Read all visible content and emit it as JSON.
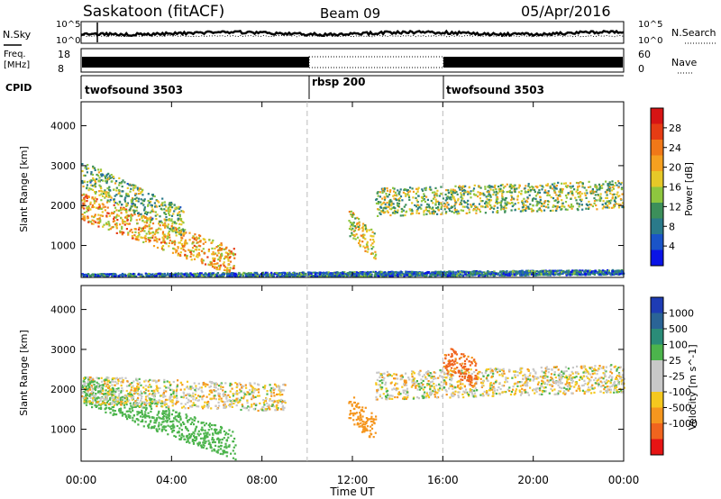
{
  "header": {
    "station": "Saskatoon (fitACF)",
    "beam": "Beam 09",
    "date": "05/Apr/2016"
  },
  "strips": {
    "noise": {
      "left_label": "N.Sky",
      "right_label": "N.Search",
      "left_ticks": [
        "10^5",
        "10^0"
      ],
      "right_ticks": [
        "10^5",
        "10^0"
      ]
    },
    "freq": {
      "left_label_1": "Freq.",
      "left_label_2": "[MHz]",
      "right_label": "Nave",
      "left_ticks": [
        "18",
        "8"
      ],
      "right_ticks": [
        "60",
        "0"
      ]
    },
    "cpid": {
      "label": "CPID",
      "segments": [
        {
          "name": "twofsound 3503",
          "start_hour": 0,
          "end_hour": 10
        },
        {
          "name": "rbsp 200",
          "start_hour": 10,
          "end_hour": 16
        },
        {
          "name": "twofsound 3503",
          "start_hour": 16,
          "end_hour": 24
        }
      ]
    }
  },
  "chart_data": [
    {
      "type": "heatmap",
      "quantity": "Power",
      "ylabel": "Slant Range [km]",
      "xlim": [
        0,
        24
      ],
      "ylim": [
        200,
        4600
      ],
      "yticks": [
        1000,
        2000,
        3000,
        4000
      ],
      "colorbar": {
        "label": "Power [dB]",
        "ticks": [
          "4",
          "8",
          "12",
          "16",
          "20",
          "24",
          "28"
        ],
        "colors": [
          "#0a14e6",
          "#1a54c8",
          "#2a7a8a",
          "#3c8f5a",
          "#8ec63f",
          "#e6c828",
          "#f5a020",
          "#f07818",
          "#e63c14",
          "#d71414"
        ]
      },
      "features": [
        {
          "name": "evening band",
          "time_start": 0.0,
          "time_end": 6.8,
          "range_start_km": 2000,
          "range_end_km": 600,
          "level": 0.65
        },
        {
          "name": "upper echo region",
          "time_start": 0.0,
          "time_end": 4.5,
          "range_start_km": 2800,
          "range_end_km": 1600,
          "level": 0.4
        },
        {
          "name": "rbsp patch",
          "time_start": 11.8,
          "time_end": 13.0,
          "range_start_km": 1600,
          "range_end_km": 1000,
          "level": 0.55
        },
        {
          "name": "daytime band",
          "time_start": 13.0,
          "time_end": 24.0,
          "range_start_km": 2100,
          "range_end_km": 2300,
          "level": 0.45
        },
        {
          "name": "near-range clutter",
          "time_start": 0.0,
          "time_end": 24.0,
          "range_start_km": 250,
          "range_end_km": 350,
          "level": 0.2
        }
      ]
    },
    {
      "type": "heatmap",
      "quantity": "Velocity",
      "xlabel": "Time UT",
      "ylabel": "Slant Range [km]",
      "xlim": [
        0,
        24
      ],
      "ylim": [
        200,
        4600
      ],
      "xticks": [
        "00:00",
        "04:00",
        "08:00",
        "12:00",
        "16:00",
        "20:00",
        "00:00"
      ],
      "yticks": [
        1000,
        2000,
        3000,
        4000
      ],
      "colorbar": {
        "label": "Velocity [m s^-1]",
        "ticks": [
          "1000",
          "500",
          "100",
          "25",
          "-25",
          "-100",
          "-500",
          "-1000"
        ],
        "colors": [
          "#1e3cb4",
          "#2a6496",
          "#2a8c78",
          "#4cb44c",
          "#c8c8c8",
          "#c8c8c8",
          "#f5c81e",
          "#f5961e",
          "#f0641e",
          "#e61414"
        ]
      },
      "features": [
        {
          "name": "evening band",
          "time_start": 0.0,
          "time_end": 6.8,
          "range_start_km": 2000,
          "range_end_km": 600,
          "velocity": 300
        },
        {
          "name": "ground scatter",
          "time_start": 0.0,
          "time_end": 9.0,
          "range_start_km": 2000,
          "range_end_km": 1800,
          "velocity": 0
        },
        {
          "name": "rbsp patch",
          "time_start": 11.8,
          "time_end": 13.0,
          "range_start_km": 1600,
          "range_end_km": 1000,
          "velocity": -300
        },
        {
          "name": "daytime band",
          "time_start": 13.0,
          "time_end": 24.0,
          "range_start_km": 2100,
          "range_end_km": 2300,
          "velocity": 0
        },
        {
          "name": "afternoon echoes",
          "time_start": 16.0,
          "time_end": 17.5,
          "range_start_km": 2800,
          "range_end_km": 2400,
          "velocity": -600
        }
      ]
    }
  ]
}
